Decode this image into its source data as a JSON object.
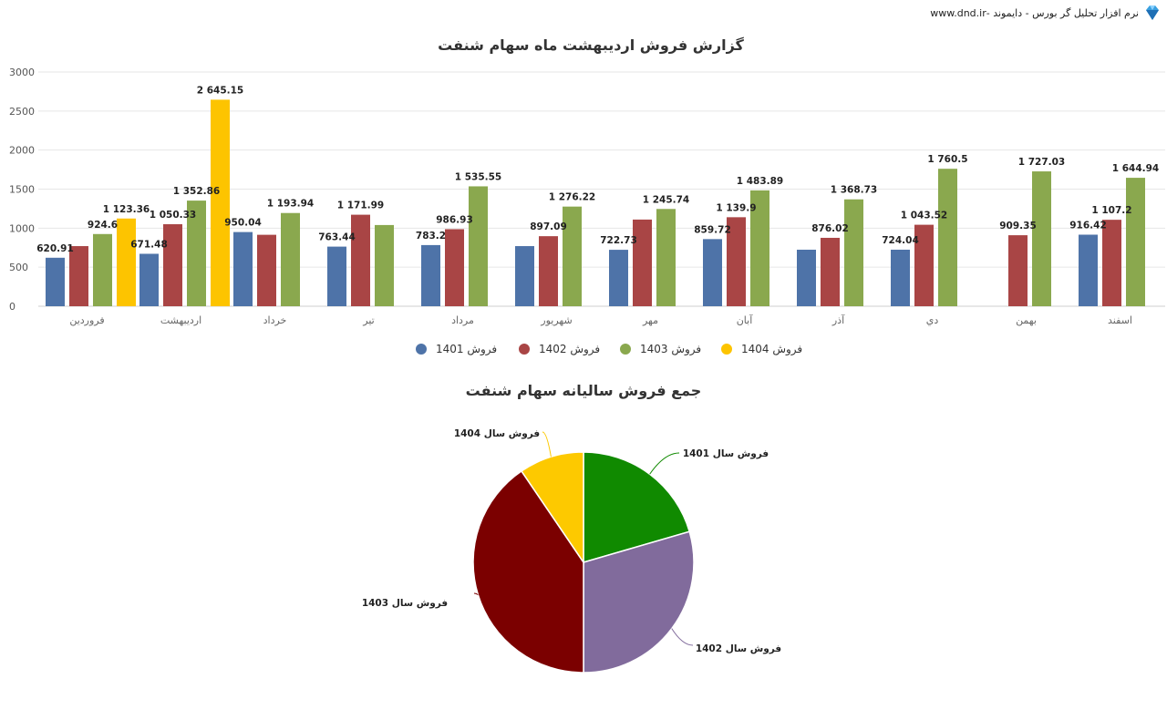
{
  "header": {
    "brand_text": "نرم افزار تحلیل گر بورس - دایموند -www.dnd.ir",
    "logo_icon": "diamond-icon"
  },
  "chart_data": [
    {
      "type": "bar",
      "title": "گزارش فروش اردیبهشت ماه سهام شنفت",
      "categories": [
        "فروردین",
        "اردیبهشت",
        "خرداد",
        "تیر",
        "مرداد",
        "شهریور",
        "مهر",
        "آبان",
        "آذر",
        "دي",
        "بهمن",
        "اسفند"
      ],
      "ylim": [
        0,
        3000
      ],
      "yticks": [
        0,
        500,
        1000,
        1500,
        2000,
        2500,
        3000
      ],
      "grid": true,
      "legend_position": "bottom",
      "series": [
        {
          "name": "فروش 1401",
          "color": "#4e73a8",
          "values": [
            620.91,
            671.48,
            950.04,
            763.44,
            783.2,
            770,
            722.73,
            859.72,
            724,
            724.04,
            null,
            916.42
          ],
          "labels": [
            "620.91",
            "671.48",
            "950.04",
            "763.44",
            "783.2",
            "",
            "722.73",
            "859.72",
            "",
            "724.04",
            "",
            "916.42"
          ]
        },
        {
          "name": "فروش 1402",
          "color": "#a94545",
          "values": [
            770,
            1050.33,
            915,
            1171.99,
            986.93,
            897.09,
            1110,
            1139.9,
            876.02,
            1043.52,
            909.35,
            1107.2
          ],
          "labels": [
            "",
            "1 050.33",
            "",
            "1 171.99",
            "986.93",
            "897.09",
            "",
            "1 139.9",
            "876.02",
            "1 043.52",
            "909.35",
            "1 107.2"
          ]
        },
        {
          "name": "فروش 1403",
          "color": "#8aa84e",
          "values": [
            924.6,
            1352.86,
            1193.94,
            1040,
            1535.55,
            1276.22,
            1245.74,
            1483.89,
            1368.73,
            1760.5,
            1727.03,
            1644.94
          ],
          "labels": [
            "924.6",
            "1 352.86",
            "1 193.94",
            "",
            "1 535.55",
            "1 276.22",
            "1 245.74",
            "1 483.89",
            "1 368.73",
            "1 760.5",
            "1 727.03",
            "1 644.94"
          ]
        },
        {
          "name": "فروش 1404",
          "color": "#fdc400",
          "values": [
            1123.36,
            2645.15,
            null,
            null,
            null,
            null,
            null,
            null,
            null,
            null,
            null,
            null
          ],
          "labels": [
            "1 123.36",
            "2 645.15",
            "",
            "",
            "",
            "",
            "",
            "",
            "",
            "",
            "",
            ""
          ]
        }
      ]
    },
    {
      "type": "pie",
      "title": "جمع فروش سالیانه سهام شنفت",
      "slices": [
        {
          "label": "فروش سال 1401",
          "value": 20.5,
          "color": "#108a00"
        },
        {
          "label": "فروش سال 1402",
          "value": 29.5,
          "color": "#816b9c"
        },
        {
          "label": "فروش سال 1403",
          "value": 40.5,
          "color": "#7b0000"
        },
        {
          "label": "فروش سال 1404",
          "value": 9.5,
          "color": "#fdc900"
        }
      ]
    }
  ]
}
